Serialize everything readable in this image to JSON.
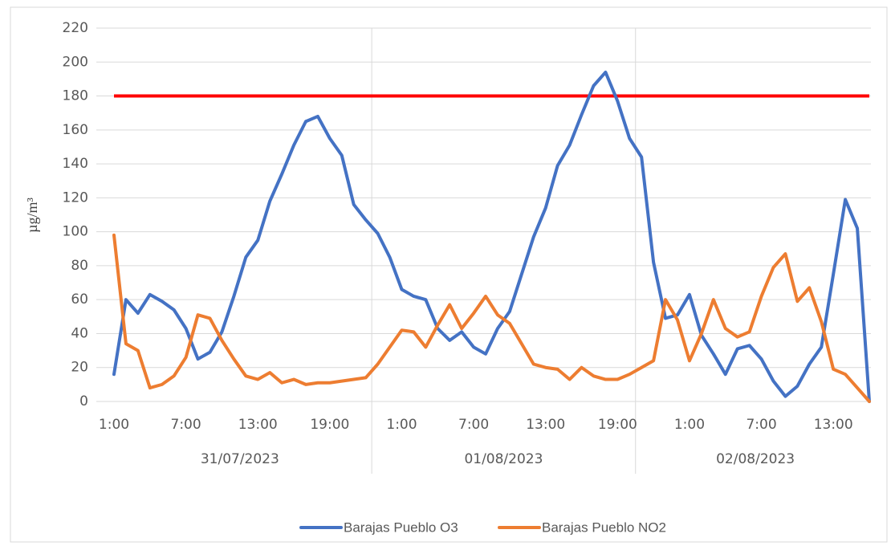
{
  "chart_data": {
    "type": "line",
    "y_axis_label": "µg/m³",
    "categories": [
      "1:00",
      null,
      null,
      null,
      null,
      null,
      "7:00",
      null,
      null,
      null,
      null,
      null,
      "13:00",
      null,
      null,
      null,
      null,
      null,
      "19:00",
      null,
      null,
      null,
      null,
      null,
      "1:00",
      null,
      null,
      null,
      null,
      null,
      "7:00",
      null,
      null,
      null,
      null,
      null,
      "13:00",
      null,
      null,
      null,
      null,
      null,
      "19:00",
      null,
      null,
      null,
      null,
      null,
      "1:00",
      null,
      null,
      null,
      null,
      null,
      "7:00",
      null,
      null,
      null,
      null,
      null,
      "13:00",
      null,
      null,
      null
    ],
    "groups": [
      "31/07/2023",
      "01/08/2023",
      "02/08/2023"
    ],
    "series": [
      {
        "name": "Barajas Pueblo O3",
        "color": "#4472c4",
        "values": [
          16,
          60,
          52,
          63,
          59,
          54,
          43,
          25,
          29,
          41,
          62,
          85,
          95,
          118,
          134,
          151,
          165,
          168,
          155,
          145,
          116,
          107,
          99,
          85,
          66,
          62,
          60,
          43,
          36,
          41,
          32,
          28,
          43,
          53,
          75,
          97,
          114,
          139,
          151,
          169,
          186,
          194,
          177,
          155,
          144,
          82,
          49,
          51,
          63,
          39,
          28,
          16,
          31,
          33,
          25,
          12,
          3,
          9,
          22,
          32,
          75,
          119,
          102,
          0
        ]
      },
      {
        "name": "Barajas Pueblo NO2",
        "color": "#ed7d31",
        "values": [
          98,
          34,
          30,
          8,
          10,
          15,
          26,
          51,
          49,
          36,
          25,
          15,
          13,
          17,
          11,
          13,
          10,
          11,
          11,
          12,
          13,
          14,
          22,
          32,
          42,
          41,
          32,
          45,
          57,
          43,
          52,
          62,
          51,
          46,
          34,
          22,
          20,
          19,
          13,
          20,
          15,
          13,
          13,
          16,
          20,
          24,
          60,
          48,
          24,
          40,
          60,
          43,
          38,
          41,
          62,
          79,
          87,
          59,
          67,
          47,
          19,
          16,
          8,
          0
        ]
      }
    ],
    "threshold": {
      "value": 180,
      "color": "#ff0000"
    },
    "ylim": [
      0,
      220
    ],
    "yticks": [
      0,
      20,
      40,
      60,
      80,
      100,
      120,
      140,
      160,
      180,
      200,
      220
    ],
    "grid": true,
    "legend": "bottom"
  }
}
